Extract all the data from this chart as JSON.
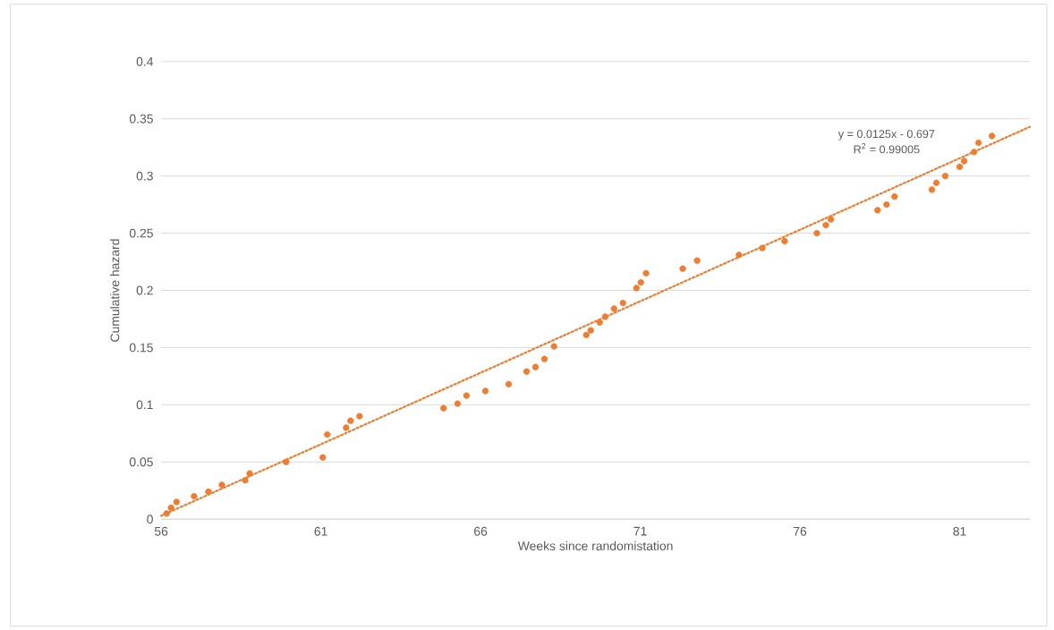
{
  "chart_data": {
    "type": "scatter",
    "xlabel": "Weeks since randomistation",
    "ylabel": "Cumulative hazard",
    "xlim": [
      56,
      83.2
    ],
    "ylim": [
      0,
      0.4
    ],
    "xticks": [
      56,
      61,
      66,
      71,
      76,
      81
    ],
    "yticks": [
      0,
      0.05,
      0.1,
      0.15,
      0.2,
      0.25,
      0.3,
      0.35,
      0.4
    ],
    "grid": "y",
    "marker": "circle",
    "annotations": [
      "y = 0.0125x - 0.697",
      "R$^{2}$ = 0.99005"
    ],
    "series": [
      {
        "color": "#ed7d31",
        "x": [
          56.17,
          56.31,
          56.48,
          57.03,
          57.48,
          57.9,
          58.63,
          58.77,
          59.91,
          61.06,
          61.2,
          61.79,
          61.93,
          62.21,
          64.84,
          65.28,
          65.56,
          66.15,
          66.88,
          67.44,
          67.72,
          68.0,
          68.3,
          69.31,
          69.45,
          69.73,
          69.9,
          70.18,
          70.46,
          70.88,
          71.02,
          71.18,
          72.33,
          72.78,
          74.09,
          74.82,
          75.52,
          76.53,
          76.81,
          76.97,
          78.43,
          78.71,
          78.96,
          80.13,
          80.27,
          80.55,
          81.0,
          81.14,
          81.45,
          81.59,
          82.01
        ],
        "values": [
          0.005,
          0.01,
          0.015,
          0.02,
          0.024,
          0.03,
          0.034,
          0.04,
          0.05,
          0.054,
          0.074,
          0.08,
          0.086,
          0.09,
          0.097,
          0.101,
          0.108,
          0.112,
          0.118,
          0.129,
          0.133,
          0.14,
          0.151,
          0.161,
          0.165,
          0.172,
          0.177,
          0.184,
          0.189,
          0.202,
          0.207,
          0.215,
          0.219,
          0.226,
          0.231,
          0.237,
          0.243,
          0.25,
          0.257,
          0.262,
          0.27,
          0.275,
          0.282,
          0.288,
          0.294,
          0.3,
          0.308,
          0.313,
          0.321,
          0.329,
          0.335
        ]
      },
      {
        "type": "line",
        "line_style": "dotted",
        "marker": "none",
        "color": "#ed7d31",
        "x": [
          56,
          83.2
        ],
        "values": [
          0.003,
          0.343
        ]
      }
    ]
  }
}
